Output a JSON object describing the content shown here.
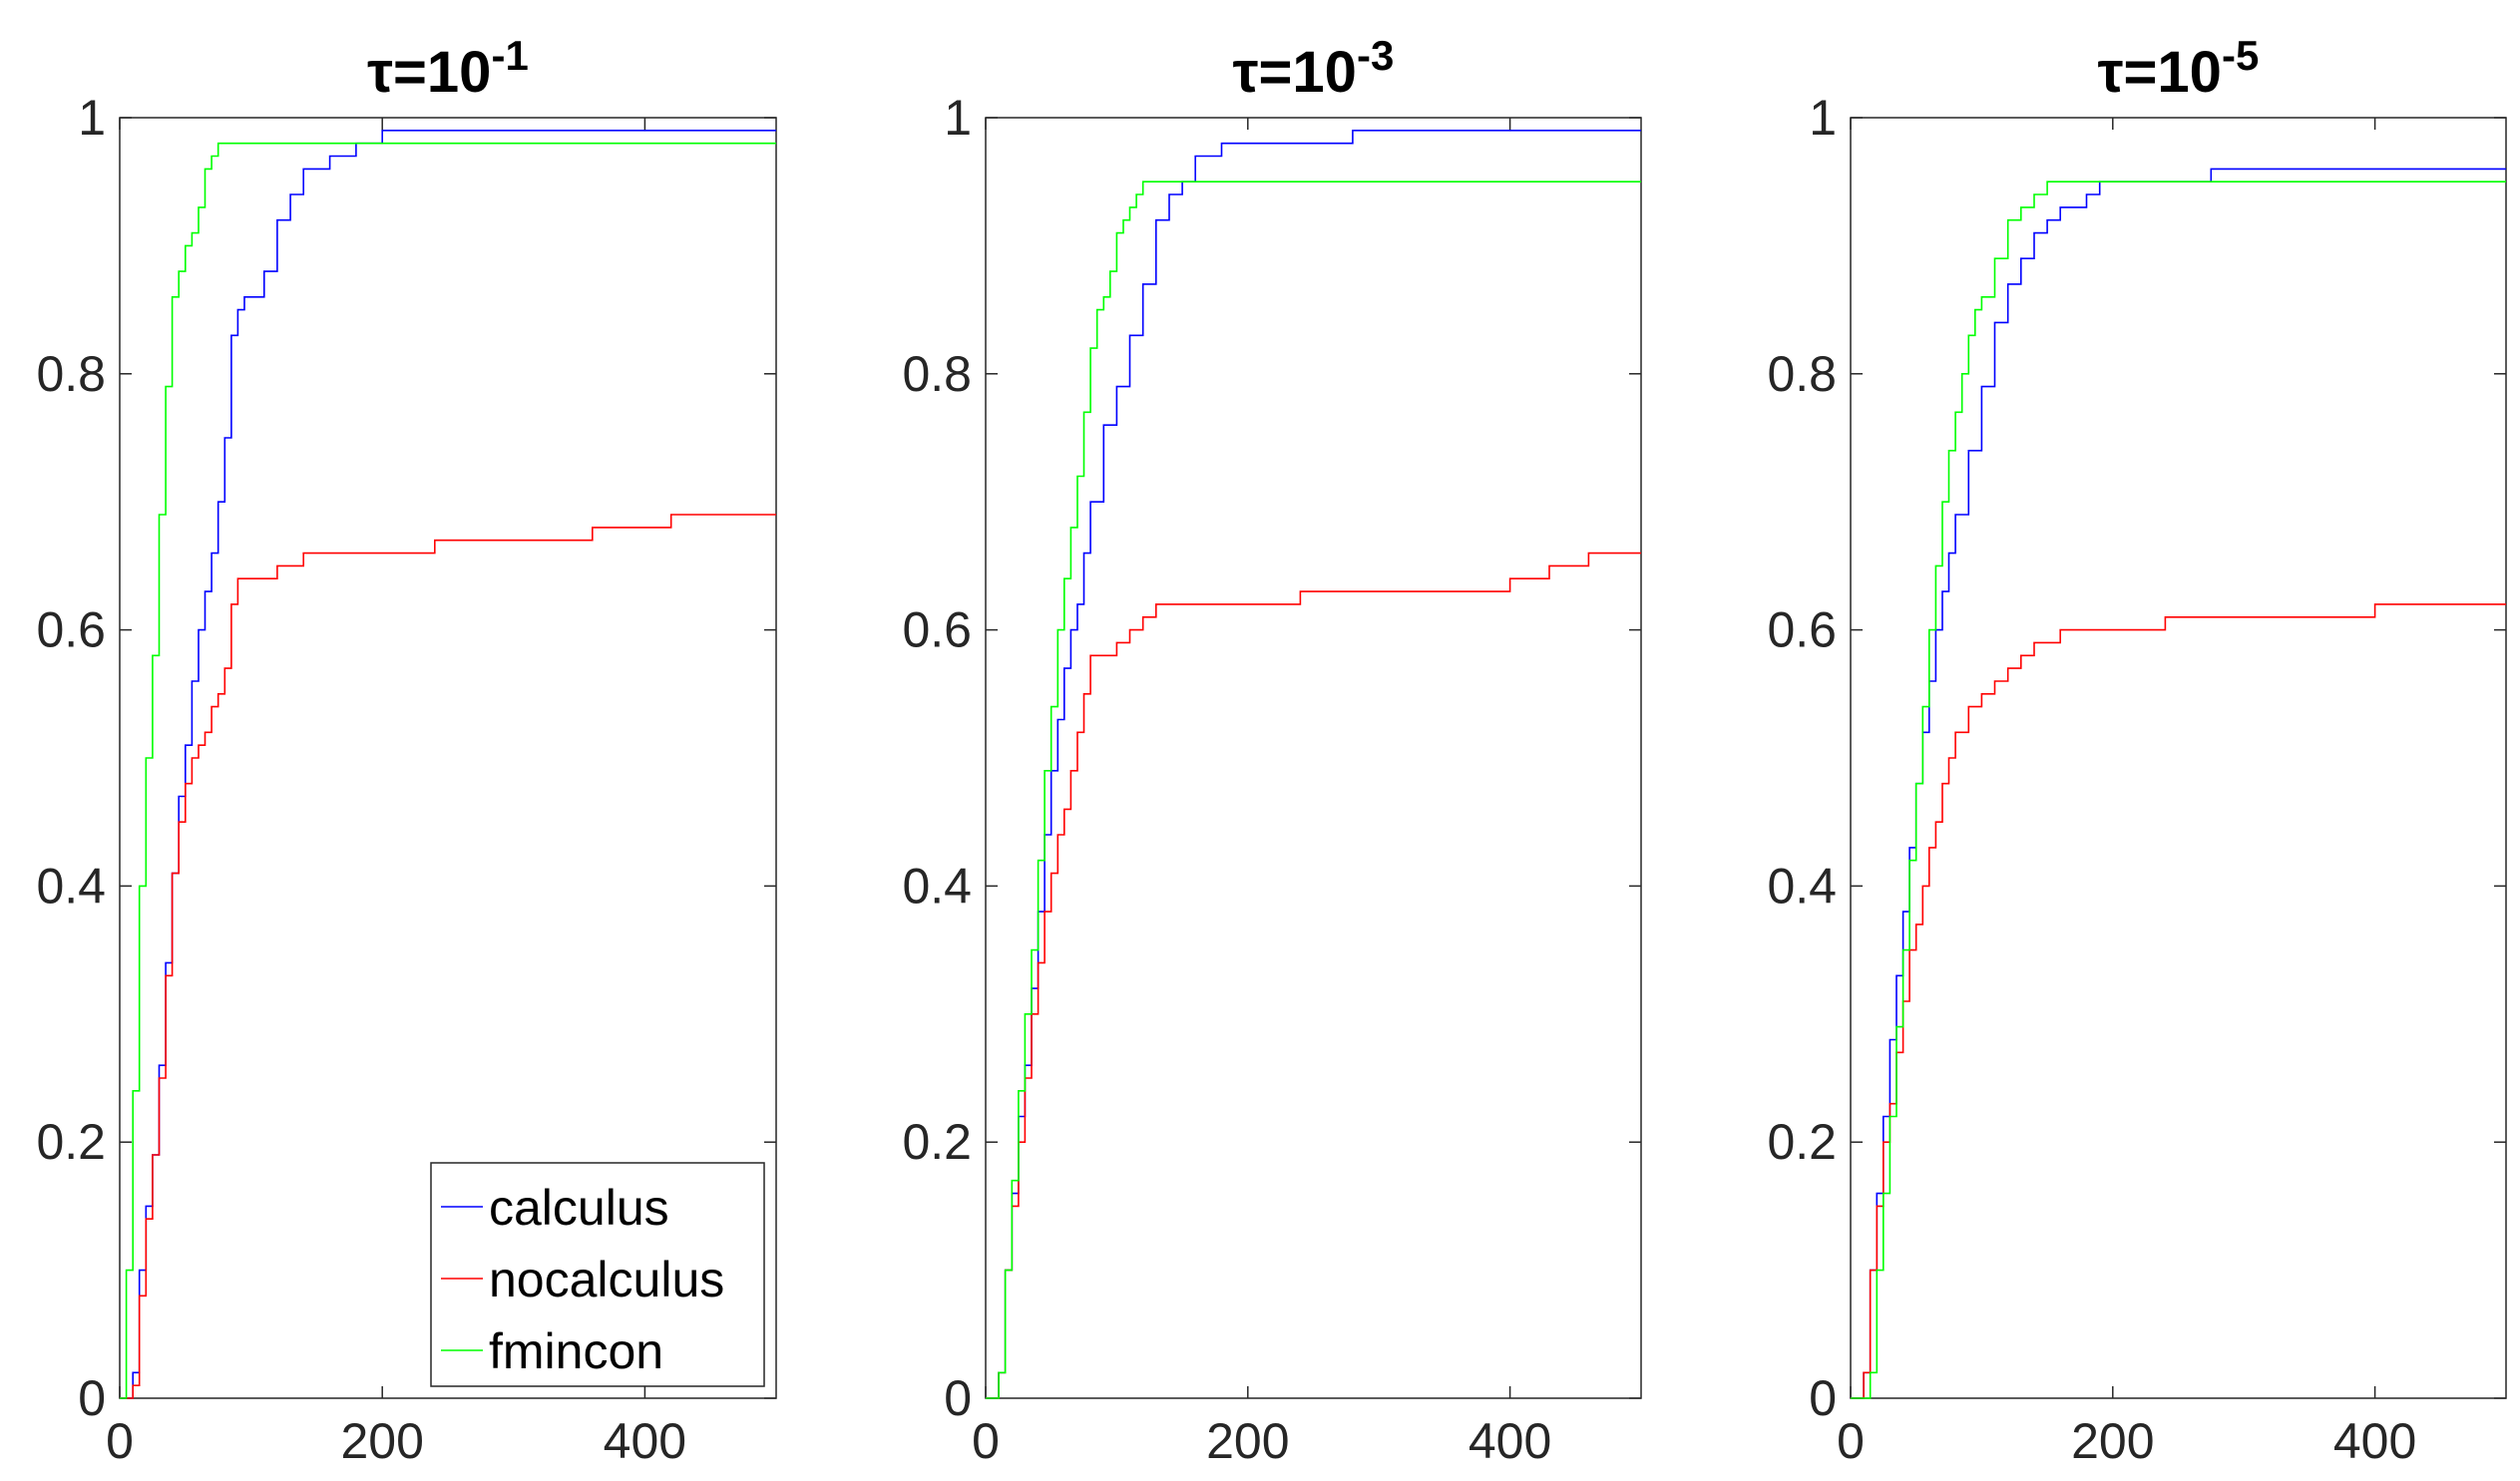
{
  "chart_data": [
    {
      "type": "line",
      "title": "τ=10",
      "title_exponent": "-1",
      "xlim": [
        0,
        500
      ],
      "ylim": [
        0,
        1
      ],
      "xticks": [
        0,
        200,
        400
      ],
      "yticks": [
        0,
        0.2,
        0.4,
        0.6,
        0.8,
        1
      ],
      "xtick_labels": [
        "0",
        "200",
        "400"
      ],
      "ytick_labels": [
        "0",
        "0.2",
        "0.4",
        "0.6",
        "0.8",
        "1"
      ],
      "series": [
        {
          "name": "calculus",
          "color": "#0000ff",
          "x": [
            0,
            10,
            15,
            20,
            25,
            30,
            35,
            40,
            45,
            50,
            55,
            60,
            65,
            70,
            75,
            80,
            85,
            90,
            95,
            100,
            110,
            120,
            130,
            140,
            150,
            160,
            170,
            180,
            200,
            500
          ],
          "y": [
            0,
            0.02,
            0.1,
            0.15,
            0.19,
            0.26,
            0.34,
            0.41,
            0.47,
            0.51,
            0.56,
            0.6,
            0.63,
            0.66,
            0.7,
            0.75,
            0.83,
            0.85,
            0.86,
            0.86,
            0.88,
            0.92,
            0.94,
            0.96,
            0.96,
            0.97,
            0.97,
            0.98,
            0.99,
            0.99
          ]
        },
        {
          "name": "nocalculus",
          "color": "#ff0000",
          "x": [
            0,
            10,
            15,
            20,
            25,
            30,
            35,
            40,
            45,
            50,
            55,
            60,
            65,
            70,
            75,
            80,
            85,
            90,
            95,
            100,
            120,
            140,
            240,
            360,
            420,
            500
          ],
          "y": [
            0,
            0.01,
            0.08,
            0.14,
            0.19,
            0.25,
            0.33,
            0.41,
            0.45,
            0.48,
            0.5,
            0.51,
            0.52,
            0.54,
            0.55,
            0.57,
            0.62,
            0.64,
            0.64,
            0.64,
            0.65,
            0.66,
            0.67,
            0.68,
            0.69,
            0.69
          ]
        },
        {
          "name": "fmincon",
          "color": "#00ff00",
          "x": [
            0,
            5,
            10,
            15,
            20,
            25,
            30,
            35,
            40,
            45,
            50,
            55,
            60,
            65,
            70,
            75,
            80,
            500
          ],
          "y": [
            0,
            0.1,
            0.24,
            0.4,
            0.5,
            0.58,
            0.69,
            0.79,
            0.86,
            0.88,
            0.9,
            0.91,
            0.93,
            0.96,
            0.97,
            0.98,
            0.98,
            0.98
          ]
        }
      ],
      "legend": {
        "entries": [
          "calculus",
          "nocalculus",
          "fmincon"
        ],
        "location": "bottom-right"
      }
    },
    {
      "type": "line",
      "title": "τ=10",
      "title_exponent": "-3",
      "xlim": [
        0,
        500
      ],
      "ylim": [
        0,
        1
      ],
      "xticks": [
        0,
        200,
        400
      ],
      "yticks": [
        0,
        0.2,
        0.4,
        0.6,
        0.8,
        1
      ],
      "xtick_labels": [
        "0",
        "200",
        "400"
      ],
      "ytick_labels": [
        "0",
        "0.2",
        "0.4",
        "0.6",
        "0.8",
        "1"
      ],
      "series": [
        {
          "name": "calculus",
          "color": "#0000ff",
          "x": [
            0,
            10,
            15,
            20,
            25,
            30,
            35,
            40,
            45,
            50,
            55,
            60,
            65,
            70,
            75,
            80,
            90,
            100,
            110,
            120,
            130,
            140,
            150,
            160,
            180,
            220,
            280,
            500
          ],
          "y": [
            0,
            0.02,
            0.1,
            0.16,
            0.22,
            0.26,
            0.32,
            0.38,
            0.44,
            0.49,
            0.53,
            0.57,
            0.6,
            0.62,
            0.66,
            0.7,
            0.76,
            0.79,
            0.83,
            0.87,
            0.92,
            0.94,
            0.95,
            0.97,
            0.98,
            0.98,
            0.99,
            0.99
          ]
        },
        {
          "name": "nocalculus",
          "color": "#ff0000",
          "x": [
            0,
            10,
            15,
            20,
            25,
            30,
            35,
            40,
            45,
            50,
            55,
            60,
            65,
            70,
            75,
            80,
            90,
            100,
            110,
            120,
            130,
            150,
            240,
            400,
            430,
            460,
            500
          ],
          "y": [
            0,
            0.02,
            0.1,
            0.15,
            0.2,
            0.25,
            0.3,
            0.34,
            0.38,
            0.41,
            0.44,
            0.46,
            0.49,
            0.52,
            0.55,
            0.58,
            0.58,
            0.59,
            0.6,
            0.61,
            0.62,
            0.62,
            0.63,
            0.64,
            0.65,
            0.66,
            0.66
          ]
        },
        {
          "name": "fmincon",
          "color": "#00ff00",
          "x": [
            0,
            10,
            15,
            20,
            25,
            30,
            35,
            40,
            45,
            50,
            55,
            60,
            65,
            70,
            75,
            80,
            85,
            90,
            95,
            100,
            105,
            110,
            115,
            120,
            500
          ],
          "y": [
            0,
            0.02,
            0.1,
            0.17,
            0.24,
            0.3,
            0.35,
            0.42,
            0.49,
            0.54,
            0.6,
            0.64,
            0.68,
            0.72,
            0.77,
            0.82,
            0.85,
            0.86,
            0.88,
            0.91,
            0.92,
            0.93,
            0.94,
            0.95,
            0.95
          ]
        }
      ]
    },
    {
      "type": "line",
      "title": "τ=10",
      "title_exponent": "-5",
      "xlim": [
        0,
        500
      ],
      "ylim": [
        0,
        1
      ],
      "xticks": [
        0,
        200,
        400
      ],
      "yticks": [
        0,
        0.2,
        0.4,
        0.6,
        0.8,
        1
      ],
      "xtick_labels": [
        "0",
        "200",
        "400"
      ],
      "ytick_labels": [
        "0",
        "0.2",
        "0.4",
        "0.6",
        "0.8",
        "1"
      ],
      "series": [
        {
          "name": "calculus",
          "color": "#0000ff",
          "x": [
            0,
            10,
            15,
            20,
            25,
            30,
            35,
            40,
            45,
            50,
            55,
            60,
            65,
            70,
            75,
            80,
            90,
            100,
            110,
            120,
            130,
            140,
            150,
            160,
            180,
            190,
            275,
            500
          ],
          "y": [
            0,
            0.02,
            0.1,
            0.16,
            0.22,
            0.28,
            0.33,
            0.38,
            0.43,
            0.48,
            0.52,
            0.56,
            0.6,
            0.63,
            0.66,
            0.69,
            0.74,
            0.79,
            0.84,
            0.87,
            0.89,
            0.91,
            0.92,
            0.93,
            0.94,
            0.95,
            0.96,
            0.96
          ]
        },
        {
          "name": "nocalculus",
          "color": "#ff0000",
          "x": [
            0,
            10,
            15,
            20,
            25,
            30,
            35,
            40,
            45,
            50,
            55,
            60,
            65,
            70,
            75,
            80,
            90,
            100,
            110,
            120,
            130,
            140,
            160,
            240,
            400,
            500
          ],
          "y": [
            0,
            0.02,
            0.1,
            0.15,
            0.2,
            0.23,
            0.27,
            0.31,
            0.35,
            0.37,
            0.4,
            0.43,
            0.45,
            0.48,
            0.5,
            0.52,
            0.54,
            0.55,
            0.56,
            0.57,
            0.58,
            0.59,
            0.6,
            0.61,
            0.62,
            0.62
          ]
        },
        {
          "name": "fmincon",
          "color": "#00ff00",
          "x": [
            0,
            15,
            20,
            25,
            30,
            35,
            40,
            45,
            50,
            55,
            60,
            65,
            70,
            75,
            80,
            85,
            90,
            95,
            100,
            110,
            120,
            130,
            140,
            150,
            500
          ],
          "y": [
            0,
            0.02,
            0.1,
            0.16,
            0.22,
            0.29,
            0.35,
            0.42,
            0.48,
            0.54,
            0.6,
            0.65,
            0.7,
            0.74,
            0.77,
            0.8,
            0.83,
            0.85,
            0.86,
            0.89,
            0.92,
            0.93,
            0.94,
            0.95,
            0.95
          ]
        }
      ]
    }
  ]
}
